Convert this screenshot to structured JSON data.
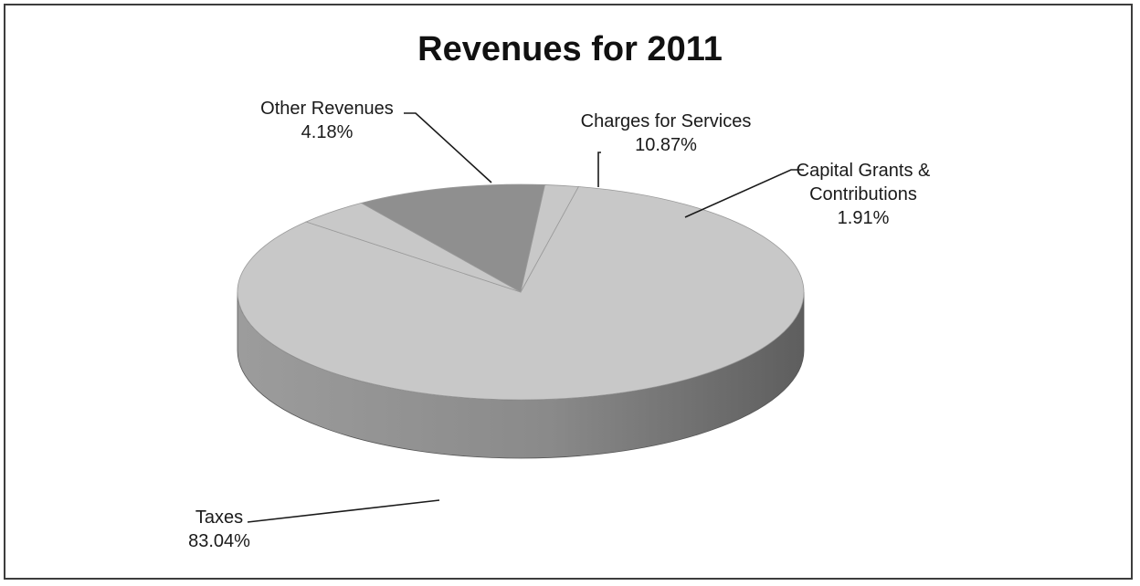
{
  "chart_data": {
    "type": "pie",
    "title": "Revenues for 2011",
    "slices": [
      {
        "label": "Taxes",
        "label_lines": [
          "Taxes"
        ],
        "value_text": "83.04%",
        "value": 83.04
      },
      {
        "label": "Other Revenues",
        "label_lines": [
          "Other Revenues"
        ],
        "value_text": "4.18%",
        "value": 4.18
      },
      {
        "label": "Charges for Services",
        "label_lines": [
          "Charges for Services"
        ],
        "value_text": "10.87%",
        "value": 10.87
      },
      {
        "label": "Capital Grants & Contributions",
        "label_lines": [
          "Capital Grants &",
          "Contributions"
        ],
        "value_text": "1.91%",
        "value": 1.91
      }
    ],
    "colors": {
      "light": "#c8c8c8",
      "dark": "#8f8f8f",
      "side": "#9a9a9a",
      "side_dark": "#6a6a6a"
    },
    "style": "3d",
    "legend": "none"
  }
}
